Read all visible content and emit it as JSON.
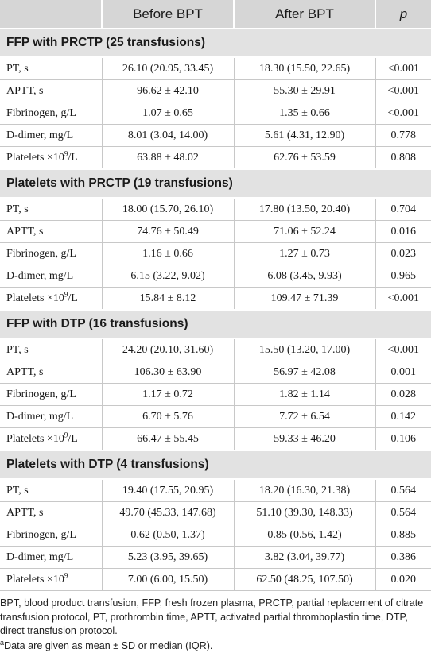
{
  "header": {
    "col0": "",
    "col1": "Before BPT",
    "col2": "After BPT",
    "col3": "p"
  },
  "sections": [
    {
      "title": "FFP with PRCTP (25 transfusions)",
      "rows": [
        {
          "label": "PT, s",
          "before": "26.10 (20.95, 33.45)",
          "after": "18.30 (15.50, 22.65)",
          "p": "<0.001"
        },
        {
          "label": "APTT, s",
          "before": "96.62 ± 42.10",
          "after": "55.30 ± 29.91",
          "p": "<0.001"
        },
        {
          "label": "Fibrinogen, g/L",
          "before": "1.07 ± 0.65",
          "after": "1.35 ± 0.66",
          "p": "<0.001"
        },
        {
          "label": "D-dimer, mg/L",
          "before": "8.01 (3.04, 14.00)",
          "after": "5.61 (4.31, 12.90)",
          "p": "0.778"
        },
        {
          "label": "Platelets ×10",
          "sup": "9",
          "tail": "/L",
          "before": "63.88 ± 48.02",
          "after": "62.76 ± 53.59",
          "p": "0.808"
        }
      ]
    },
    {
      "title": "Platelets with PRCTP (19 transfusions)",
      "rows": [
        {
          "label": "PT, s",
          "before": "18.00 (15.70, 26.10)",
          "after": "17.80 (13.50, 20.40)",
          "p": "0.704"
        },
        {
          "label": "APTT, s",
          "before": "74.76 ± 50.49",
          "after": "71.06 ± 52.24",
          "p": "0.016"
        },
        {
          "label": "Fibrinogen, g/L",
          "before": "1.16 ± 0.66",
          "after": "1.27 ± 0.73",
          "p": "0.023"
        },
        {
          "label": "D-dimer, mg/L",
          "before": "6.15 (3.22, 9.02)",
          "after": "6.08 (3.45, 9.93)",
          "p": "0.965"
        },
        {
          "label": "Platelets ×10",
          "sup": "9",
          "tail": "/L",
          "before": "15.84 ± 8.12",
          "after": "109.47 ± 71.39",
          "p": "<0.001"
        }
      ]
    },
    {
      "title": "FFP with DTP (16 transfusions)",
      "rows": [
        {
          "label": "PT, s",
          "before": "24.20 (20.10, 31.60)",
          "after": "15.50 (13.20, 17.00)",
          "p": "<0.001"
        },
        {
          "label": "APTT, s",
          "before": "106.30 ± 63.90",
          "after": "56.97 ± 42.08",
          "p": "0.001"
        },
        {
          "label": "Fibrinogen, g/L",
          "before": "1.17 ± 0.72",
          "after": "1.82 ± 1.14",
          "p": "0.028"
        },
        {
          "label": "D-dimer, mg/L",
          "before": "6.70 ± 5.76",
          "after": "7.72 ± 6.54",
          "p": "0.142"
        },
        {
          "label": "Platelets ×10",
          "sup": "9",
          "tail": "/L",
          "before": "66.47 ± 55.45",
          "after": "59.33 ± 46.20",
          "p": "0.106"
        }
      ]
    },
    {
      "title": "Platelets with DTP (4 transfusions)",
      "rows": [
        {
          "label": "PT, s",
          "before": "19.40 (17.55, 20.95)",
          "after": "18.20 (16.30, 21.38)",
          "p": "0.564"
        },
        {
          "label": "APTT, s",
          "before": "49.70 (45.33, 147.68)",
          "after": "51.10 (39.30, 148.33)",
          "p": "0.564"
        },
        {
          "label": "Fibrinogen, g/L",
          "before": "0.62 (0.50, 1.37)",
          "after": "0.85 (0.56, 1.42)",
          "p": "0.885"
        },
        {
          "label": "D-dimer, mg/L",
          "before": "5.23 (3.95, 39.65)",
          "after": "3.82 (3.04, 39.77)",
          "p": "0.386"
        },
        {
          "label": "Platelets ×10",
          "sup": "9",
          "tail": "",
          "before": "7.00 (6.00, 15.50)",
          "after": "62.50 (48.25, 107.50)",
          "p": "0.020"
        }
      ]
    }
  ],
  "notes": {
    "abbreviations": "BPT, blood product transfusion, FFP, fresh frozen plasma, PRCTP, partial replacement of citrate transfusion protocol, PT, prothrombin time, APTT, activated partial thromboplastin time, DTP, direct transfusion protocol.",
    "footnote_mark": "a",
    "footnote_text": "Data are given as mean ± SD or median (IQR)."
  },
  "colors": {
    "header_bg": "#d6d6d6",
    "section_bg": "#e2e2e2",
    "grid_line": "#c8c8c8"
  }
}
